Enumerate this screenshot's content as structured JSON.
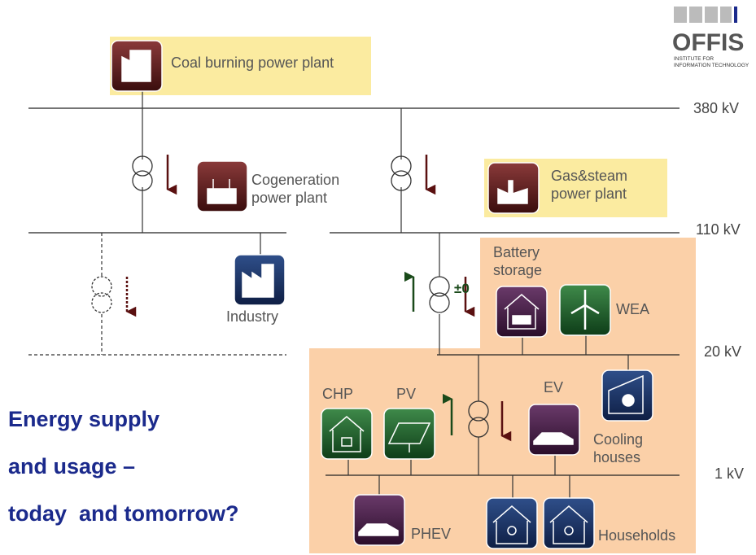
{
  "logo": {
    "name": "OFFIS",
    "subtitle": [
      "INSTITUTE FOR",
      "INFORMATION TECHNOLOGY"
    ]
  },
  "voltage_levels": [
    "380 kV",
    "110 kV",
    "20 kV",
    "1 kV"
  ],
  "nodes": [
    {
      "lines": [
        "Coal burning power plant"
      ]
    },
    {
      "lines": [
        "Cogeneration",
        "power plant"
      ]
    },
    {
      "lines": [
        "Gas&steam",
        "power plant"
      ]
    },
    {
      "lines": [
        "Industry"
      ]
    },
    {
      "lines": [
        "Battery",
        "storage"
      ]
    },
    {
      "lines": [
        "WEA"
      ]
    },
    {
      "lines": [
        "CHP"
      ]
    },
    {
      "lines": [
        "PV"
      ]
    },
    {
      "lines": [
        "EV"
      ]
    },
    {
      "lines": [
        "Cooling",
        "houses"
      ]
    },
    {
      "lines": [
        "PHEV"
      ]
    },
    {
      "lines": [
        "Households"
      ]
    }
  ],
  "transformer_label": "±0",
  "title": [
    "Energy supply",
    "and usage –",
    "today  and tomorrow?"
  ]
}
